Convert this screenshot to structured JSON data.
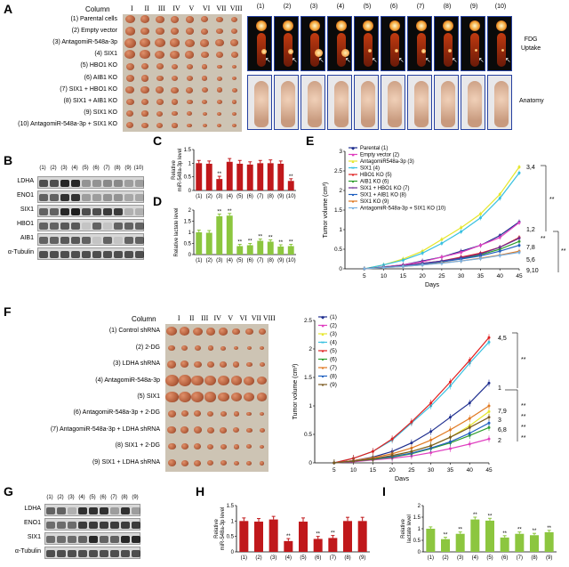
{
  "panels": {
    "A": {
      "label": "A",
      "column_header": "Column",
      "columns": [
        "I",
        "II",
        "III",
        "IV",
        "V",
        "VI",
        "VII",
        "VIII"
      ],
      "rows": [
        "(1) Parental cells",
        "(2) Empty vector",
        "(3) AntagomiR-548a-3p",
        "(4) SIX1",
        "(5) HBO1 KO",
        "(6) AIB1 KO",
        "(7) SIX1 + HBO1 KO",
        "(8) SIX1 + AIB1 KO",
        "(9) SIX1 KO",
        "(10) AntagomiR-548a-3p + SIX1 KO"
      ],
      "pet_numbers": [
        "(1)",
        "(2)",
        "(3)",
        "(4)",
        "(5)",
        "(6)",
        "(7)",
        "(8)",
        "(9)",
        "(10)"
      ],
      "pet_label_top": "FDG\nUptake",
      "pet_label_bottom": "Anatomy",
      "colors": {
        "tumor": "#b5603d",
        "pet_hot": "#ffe08a",
        "pet_warm": "#e0501a",
        "mouse": "#d9b59a",
        "frame": "#1f3a93"
      }
    },
    "B": {
      "label": "B",
      "lanes": [
        "(1)",
        "(2)",
        "(3)",
        "(4)",
        "(5)",
        "(6)",
        "(7)",
        "(8)",
        "(9)",
        "(10)"
      ],
      "bands": [
        "LDHA",
        "ENO1",
        "SIX1",
        "HBO1",
        "AIB1",
        "α-Tubulin"
      ]
    },
    "C": {
      "label": "C"
    },
    "D": {
      "label": "D"
    },
    "E": {
      "label": "E"
    },
    "F": {
      "label": "F",
      "column_header": "Column",
      "columns": [
        "I",
        "II",
        "III",
        "IV",
        "V",
        "VI",
        "VII",
        "VIII"
      ],
      "rows": [
        "(1) Control shRNA",
        "(2) 2-DG",
        "(3) LDHA shRNA",
        "(4) AntagomiR-548a-3p",
        "(5) SIX1",
        "(6) AntagomiR-548a-3p + 2-DG",
        "(7) AntagomiR-548a-3p + LDHA shRNA",
        "(8) SIX1 + 2-DG",
        "(9) SIX1 + LDHA shRNA"
      ]
    },
    "G": {
      "label": "G",
      "lanes": [
        "(1)",
        "(2)",
        "(3)",
        "(4)",
        "(5)",
        "(6)",
        "(7)",
        "(8)",
        "(9)"
      ],
      "bands": [
        "LDHA",
        "ENO1",
        "SIX1",
        "α-Tubulin"
      ]
    },
    "H": {
      "label": "H"
    },
    "I": {
      "label": "I"
    }
  },
  "chart_data": [
    {
      "id": "C",
      "type": "bar",
      "categories": [
        "(1)",
        "(2)",
        "(3)",
        "(4)",
        "(5)",
        "(6)",
        "(7)",
        "(8)",
        "(9)",
        "(10)"
      ],
      "values": [
        1.0,
        0.98,
        0.42,
        1.05,
        0.98,
        0.95,
        1.0,
        1.0,
        0.98,
        0.35
      ],
      "errors": [
        0.1,
        0.1,
        0.1,
        0.12,
        0.12,
        0.1,
        0.1,
        0.12,
        0.1,
        0.08
      ],
      "significance": [
        "",
        "",
        "**",
        "",
        "",
        "",
        "",
        "",
        "",
        "**"
      ],
      "ylabel": "Relative\nmiR-548a-3p level",
      "ylim": [
        0,
        1.5
      ],
      "yticks": [
        0,
        0.5,
        1,
        1.5
      ],
      "color": "#c0181b"
    },
    {
      "id": "D",
      "type": "bar",
      "categories": [
        "(1)",
        "(2)",
        "(3)",
        "(4)",
        "(5)",
        "(6)",
        "(7)",
        "(8)",
        "(9)",
        "(10)"
      ],
      "values": [
        1.0,
        0.98,
        1.72,
        1.75,
        0.38,
        0.42,
        0.62,
        0.58,
        0.36,
        0.38
      ],
      "errors": [
        0.1,
        0.1,
        0.1,
        0.1,
        0.08,
        0.08,
        0.08,
        0.08,
        0.08,
        0.08
      ],
      "significance": [
        "",
        "",
        "**",
        "**",
        "**",
        "**",
        "**",
        "**",
        "**",
        "**"
      ],
      "ylabel": "Relative lactate level",
      "ylim": [
        0,
        2
      ],
      "yticks": [
        0,
        0.5,
        1,
        1.5,
        2
      ],
      "color": "#8cc63f"
    },
    {
      "id": "E",
      "type": "line",
      "x": [
        5,
        10,
        15,
        20,
        25,
        30,
        35,
        40,
        45
      ],
      "xlabel": "Days",
      "ylabel": "Tumor volume (cm³)",
      "ylim": [
        0,
        3
      ],
      "yticks": [
        0,
        0.5,
        1,
        1.5,
        2,
        2.5,
        3
      ],
      "legend": "top-left",
      "series": [
        {
          "name": "Parental (1)",
          "color": "#1f2f8f",
          "marker": "◆",
          "values": [
            0,
            0.05,
            0.1,
            0.2,
            0.3,
            0.45,
            0.6,
            0.85,
            1.2
          ]
        },
        {
          "name": "Empty vector (2)",
          "color": "#e040c0",
          "marker": "■",
          "values": [
            0,
            0.05,
            0.1,
            0.18,
            0.3,
            0.42,
            0.6,
            0.8,
            1.18
          ]
        },
        {
          "name": "AntagomiR548a-3p (3)",
          "color": "#e6e62a",
          "marker": "▲",
          "values": [
            0,
            0.1,
            0.25,
            0.45,
            0.75,
            1.05,
            1.4,
            1.9,
            2.6
          ]
        },
        {
          "name": "SIX1 (4)",
          "color": "#39c0e0",
          "marker": "✕",
          "values": [
            0,
            0.1,
            0.22,
            0.4,
            0.65,
            0.95,
            1.3,
            1.8,
            2.45
          ]
        },
        {
          "name": "HBO1 KO (5)",
          "color": "#e02020",
          "marker": "●",
          "values": [
            0,
            0.04,
            0.08,
            0.14,
            0.2,
            0.3,
            0.4,
            0.55,
            0.8
          ]
        },
        {
          "name": "AIB1 KO (6)",
          "color": "#2e9e2e",
          "marker": "●",
          "values": [
            0,
            0.04,
            0.08,
            0.12,
            0.18,
            0.26,
            0.36,
            0.5,
            0.7
          ]
        },
        {
          "name": "SIX1 + HBO1 KO (7)",
          "color": "#6a2c91",
          "marker": "+",
          "values": [
            0,
            0.04,
            0.08,
            0.14,
            0.2,
            0.28,
            0.38,
            0.55,
            0.78
          ]
        },
        {
          "name": "SIX1 + AIB1 KO (8)",
          "color": "#2060c0",
          "marker": "●",
          "values": [
            0,
            0.04,
            0.07,
            0.12,
            0.18,
            0.25,
            0.33,
            0.45,
            0.6
          ]
        },
        {
          "name": "SIX1 KO (9)",
          "color": "#e07820",
          "marker": "●",
          "values": [
            0,
            0.03,
            0.06,
            0.1,
            0.15,
            0.2,
            0.27,
            0.35,
            0.45
          ]
        },
        {
          "name": "AntagomiR-548a-3p + SIX1 KO (10)",
          "color": "#7ab0e0",
          "marker": "●",
          "values": [
            0,
            0.03,
            0.06,
            0.1,
            0.14,
            0.2,
            0.26,
            0.34,
            0.42
          ]
        }
      ],
      "annotations": [
        "3,4",
        "1,2",
        "**",
        "7,8",
        "5,6",
        "9,10",
        "**",
        "**"
      ]
    },
    {
      "id": "F",
      "type": "line",
      "x": [
        5,
        10,
        15,
        20,
        25,
        30,
        35,
        40,
        45
      ],
      "xlabel": "Days",
      "ylabel": "Tumor volume (cm³)",
      "ylim": [
        0,
        2.5
      ],
      "yticks": [
        0,
        0.5,
        1,
        1.5,
        2,
        2.5
      ],
      "legend": "top-left",
      "series": [
        {
          "name": "(1)",
          "color": "#1f2f8f",
          "marker": "◆",
          "values": [
            0,
            0.04,
            0.1,
            0.2,
            0.35,
            0.55,
            0.8,
            1.05,
            1.4
          ]
        },
        {
          "name": "(2)",
          "color": "#e040c0",
          "marker": "■",
          "values": [
            0,
            0.02,
            0.05,
            0.08,
            0.12,
            0.18,
            0.25,
            0.33,
            0.42
          ]
        },
        {
          "name": "(3)",
          "color": "#e6e62a",
          "marker": "▲",
          "values": [
            0,
            0.03,
            0.07,
            0.12,
            0.2,
            0.3,
            0.45,
            0.65,
            0.9
          ]
        },
        {
          "name": "(4)",
          "color": "#39c0e0",
          "marker": "✕",
          "values": [
            0,
            0.08,
            0.2,
            0.4,
            0.7,
            1.0,
            1.35,
            1.75,
            2.12
          ]
        },
        {
          "name": "(5)",
          "color": "#e02020",
          "marker": "●",
          "values": [
            0,
            0.08,
            0.2,
            0.42,
            0.72,
            1.05,
            1.42,
            1.8,
            2.2
          ]
        },
        {
          "name": "(6)",
          "color": "#2e9e2e",
          "marker": "●",
          "values": [
            0,
            0.03,
            0.06,
            0.1,
            0.16,
            0.25,
            0.35,
            0.48,
            0.62
          ]
        },
        {
          "name": "(7)",
          "color": "#e07820",
          "marker": "●",
          "values": [
            0,
            0.04,
            0.09,
            0.16,
            0.26,
            0.4,
            0.58,
            0.78,
            1.0
          ]
        },
        {
          "name": "(8)",
          "color": "#2060c0",
          "marker": "●",
          "values": [
            0,
            0.03,
            0.07,
            0.11,
            0.17,
            0.26,
            0.37,
            0.52,
            0.7
          ]
        },
        {
          "name": "(9)",
          "color": "#7a5a20",
          "marker": "●",
          "values": [
            0,
            0.03,
            0.07,
            0.13,
            0.2,
            0.3,
            0.45,
            0.62,
            0.8
          ]
        }
      ],
      "annotations": [
        "4,5",
        "**",
        "1",
        "**",
        "7,9",
        "**",
        "3",
        "**",
        "6,8",
        "**",
        "2"
      ]
    },
    {
      "id": "H",
      "type": "bar",
      "categories": [
        "(1)",
        "(2)",
        "(3)",
        "(4)",
        "(5)",
        "(6)",
        "(7)",
        "(8)",
        "(9)"
      ],
      "values": [
        1.0,
        0.98,
        1.05,
        0.35,
        0.98,
        0.42,
        0.45,
        1.0,
        1.0
      ],
      "errors": [
        0.1,
        0.1,
        0.1,
        0.08,
        0.12,
        0.08,
        0.08,
        0.12,
        0.12
      ],
      "significance": [
        "",
        "",
        "",
        "**",
        "",
        "**",
        "**",
        "",
        ""
      ],
      "ylabel": "Relative\nmiR-548a-3p level",
      "ylim": [
        0,
        1.5
      ],
      "yticks": [
        0,
        0.5,
        1,
        1.5
      ],
      "color": "#c0181b"
    },
    {
      "id": "I",
      "type": "bar",
      "categories": [
        "(1)",
        "(2)",
        "(3)",
        "(4)",
        "(5)",
        "(6)",
        "(7)",
        "(8)",
        "(9)"
      ],
      "values": [
        1.0,
        0.55,
        0.78,
        1.4,
        1.35,
        0.62,
        0.78,
        0.72,
        0.85
      ],
      "errors": [
        0.08,
        0.08,
        0.08,
        0.1,
        0.1,
        0.08,
        0.08,
        0.08,
        0.08
      ],
      "significance": [
        "",
        "**",
        "**",
        "**",
        "**",
        "**",
        "**",
        "**",
        "**"
      ],
      "ylabel": "Relative\nlactate level",
      "ylim": [
        0,
        2
      ],
      "yticks": [
        0,
        0.5,
        1,
        1.5,
        2
      ],
      "color": "#8cc63f"
    }
  ]
}
